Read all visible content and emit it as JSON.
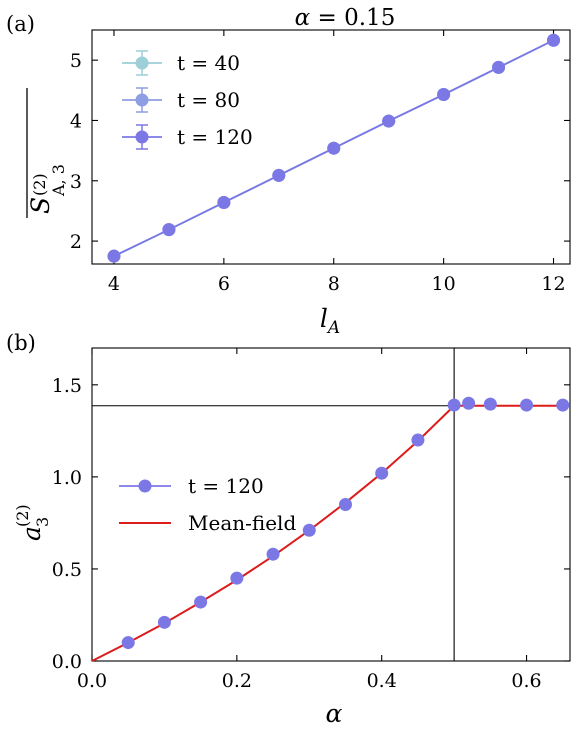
{
  "chart_data": [
    {
      "panel_label": "(a)",
      "type": "line",
      "title": "α = 0.15",
      "xlabel": "l_A",
      "ylabel": "S̄_{A,3}^{(2)}",
      "xlim": [
        3.6,
        12.3
      ],
      "ylim": [
        1.62,
        5.5
      ],
      "xticks": [
        4,
        6,
        8,
        10,
        12
      ],
      "yticks": [
        2,
        3,
        4,
        5
      ],
      "grid": false,
      "legend_position": "upper-left",
      "series": [
        {
          "name": "t = 40",
          "color": "#9ccfd8",
          "x": [
            4,
            5,
            6,
            7,
            8,
            9,
            10,
            11,
            12
          ],
          "y": [
            1.75,
            2.19,
            2.64,
            3.09,
            3.54,
            3.99,
            4.43,
            4.88,
            5.33
          ],
          "error": [
            0.04,
            0.04,
            0.04,
            0.04,
            0.04,
            0.04,
            0.04,
            0.04,
            0.04
          ]
        },
        {
          "name": "t = 80",
          "color": "#8e9ee2",
          "x": [
            4,
            5,
            6,
            7,
            8,
            9,
            10,
            11,
            12
          ],
          "y": [
            1.75,
            2.19,
            2.64,
            3.09,
            3.54,
            3.99,
            4.43,
            4.88,
            5.33
          ],
          "error": [
            0.04,
            0.04,
            0.04,
            0.04,
            0.04,
            0.04,
            0.04,
            0.04,
            0.04
          ]
        },
        {
          "name": "t = 120",
          "color": "#7b78e6",
          "x": [
            4,
            5,
            6,
            7,
            8,
            9,
            10,
            11,
            12
          ],
          "y": [
            1.75,
            2.19,
            2.64,
            3.09,
            3.54,
            3.99,
            4.43,
            4.88,
            5.33
          ],
          "error": [
            0.04,
            0.04,
            0.04,
            0.04,
            0.04,
            0.04,
            0.04,
            0.04,
            0.04
          ]
        }
      ]
    },
    {
      "panel_label": "(b)",
      "type": "line",
      "xlabel": "α",
      "ylabel": "a_3^{(2)}",
      "xlim": [
        0.0,
        0.66
      ],
      "ylim": [
        0.0,
        1.7
      ],
      "xticks": [
        0.0,
        0.2,
        0.4,
        0.6
      ],
      "xtick_labels": [
        "0.0",
        "0.2",
        "0.4",
        "0.6"
      ],
      "yticks": [
        0.0,
        0.5,
        1.0,
        1.5
      ],
      "ytick_labels": [
        "0.0",
        "0.5",
        "1.0",
        "1.5"
      ],
      "grid": false,
      "legend_position": "center-left",
      "reference_lines": {
        "horizontal_y": 1.3863,
        "vertical_x": 0.5
      },
      "series": [
        {
          "name": "t = 120",
          "color": "#7b78e6",
          "marker": "circle",
          "x": [
            0.05,
            0.1,
            0.15,
            0.2,
            0.25,
            0.3,
            0.35,
            0.4,
            0.45,
            0.5,
            0.52,
            0.55,
            0.6,
            0.65
          ],
          "y": [
            0.1,
            0.21,
            0.32,
            0.45,
            0.58,
            0.71,
            0.85,
            1.02,
            1.2,
            1.39,
            1.4,
            1.395,
            1.39,
            1.39
          ]
        },
        {
          "name": "Mean-field",
          "color": "#dd1c1c",
          "marker": "none",
          "x": [
            0.0,
            0.05,
            0.1,
            0.15,
            0.2,
            0.25,
            0.3,
            0.35,
            0.4,
            0.45,
            0.5,
            0.55,
            0.6,
            0.66
          ],
          "y": [
            0.0,
            0.1,
            0.205,
            0.32,
            0.44,
            0.57,
            0.71,
            0.86,
            1.02,
            1.195,
            1.3863,
            1.3863,
            1.3863,
            1.3863
          ]
        }
      ]
    }
  ]
}
